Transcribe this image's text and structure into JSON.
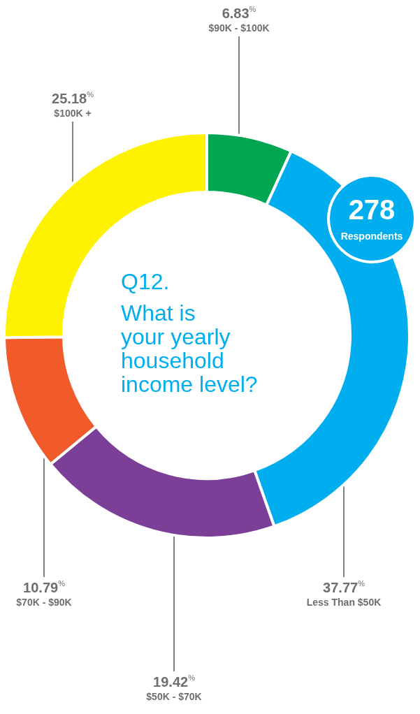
{
  "chart_data": {
    "type": "donut",
    "title": "Q12.",
    "subtitle": "What is\nyour yearly\nhousehold\nincome level?",
    "categories": [
      "$90K - $100K",
      "Less Than $50K",
      "$50K - $70K",
      "$70K - $90K",
      "$100K +"
    ],
    "values": [
      6.83,
      37.77,
      19.42,
      10.79,
      25.18
    ],
    "colors": [
      "#00a651",
      "#00aeef",
      "#7b3f98",
      "#f15a29",
      "#fff200"
    ],
    "value_labels": [
      "6.83%",
      "37.77%",
      "19.42%",
      "10.79%",
      "25.18%"
    ],
    "annotations": [
      "278",
      "Respondents"
    ]
  }
}
